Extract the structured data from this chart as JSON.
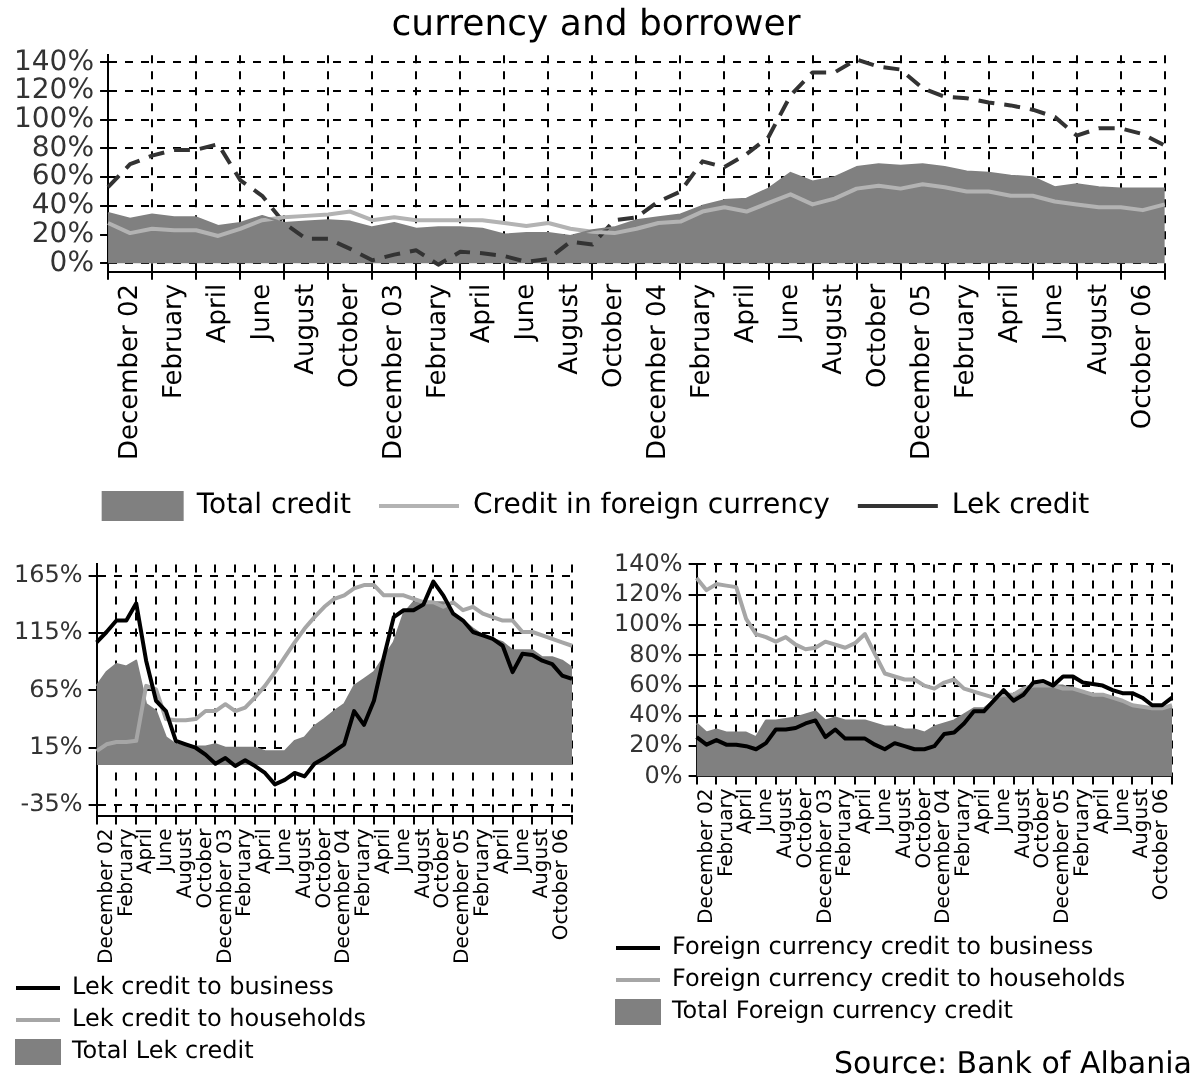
{
  "chart_data": [
    {
      "type": "line",
      "title": "currency and borrower",
      "categories": [
        null,
        "December 02",
        null,
        "February",
        null,
        "April",
        null,
        "June",
        null,
        "August",
        null,
        "October",
        null,
        "December 03",
        null,
        "February",
        null,
        "April",
        null,
        "June",
        null,
        "August",
        null,
        "October",
        null,
        "December 04",
        null,
        "February",
        null,
        "April",
        null,
        "June",
        null,
        "August",
        null,
        "October",
        null,
        "December 05",
        null,
        "February",
        null,
        "April",
        null,
        "June",
        null,
        "August",
        null,
        "October 06",
        null
      ],
      "series": [
        {
          "name": "Total credit",
          "type": "area",
          "color": "#808080",
          "values": [
            35,
            31,
            34,
            32,
            32,
            26,
            28,
            33,
            28,
            29,
            30,
            29,
            25,
            28,
            24,
            25,
            25,
            24,
            20,
            21,
            21,
            19,
            23,
            25,
            30,
            32,
            34,
            40,
            44,
            45,
            52,
            63,
            57,
            60,
            67,
            69,
            68,
            69,
            67,
            64,
            63,
            61,
            60,
            53,
            55,
            53,
            52,
            52,
            52
          ]
        },
        {
          "name": "Credit in foreign currency",
          "color": "#b3b3b3",
          "values": [
            28,
            21,
            24,
            23,
            23,
            19,
            24,
            30,
            32,
            33,
            34,
            36,
            30,
            32,
            30,
            30,
            30,
            30,
            28,
            26,
            28,
            24,
            22,
            21,
            24,
            28,
            29,
            36,
            39,
            36,
            42,
            48,
            41,
            45,
            52,
            54,
            52,
            55,
            53,
            50,
            50,
            47,
            47,
            43,
            41,
            39,
            39,
            37,
            41
          ]
        },
        {
          "name": "Lek credit",
          "color": "#333333",
          "line_style": "dashed",
          "values": [
            53,
            69,
            75,
            79,
            79,
            83,
            58,
            47,
            28,
            17,
            17,
            10,
            2,
            6,
            9,
            -1,
            8,
            7,
            5,
            1,
            3,
            15,
            13,
            30,
            32,
            43,
            50,
            71,
            67,
            76,
            88,
            117,
            133,
            133,
            142,
            137,
            135,
            122,
            116,
            115,
            112,
            110,
            107,
            102,
            89,
            94,
            94,
            90,
            82
          ]
        }
      ],
      "ylim": [
        -6,
        145
      ],
      "yticks": [
        {
          "value": 0,
          "label": "0%"
        },
        {
          "value": 20,
          "label": "20%"
        },
        {
          "value": 40,
          "label": "40%"
        },
        {
          "value": 60,
          "label": "60%"
        },
        {
          "value": 80,
          "label": "80%"
        },
        {
          "value": 100,
          "label": "100%"
        },
        {
          "value": 120,
          "label": "120%"
        },
        {
          "value": 140,
          "label": "140%"
        }
      ],
      "grid": true,
      "legend": "bottom"
    },
    {
      "type": "line",
      "categories": [
        null,
        "December 02",
        null,
        "February",
        null,
        "April",
        null,
        "June",
        null,
        "August",
        null,
        "October",
        null,
        "December 03",
        null,
        "February",
        null,
        "April",
        null,
        "June",
        null,
        "August",
        null,
        "October",
        null,
        "December 04",
        null,
        "February",
        null,
        "April",
        null,
        "June",
        null,
        "August",
        null,
        "October",
        null,
        "December 05",
        null,
        "February",
        null,
        "April",
        null,
        "June",
        null,
        "August",
        null,
        "October 06",
        null
      ],
      "series": [
        {
          "name": "Lek credit to business",
          "color": "#000000",
          "values": [
            107,
            116,
            126,
            126,
            141,
            91,
            56,
            47,
            21,
            18,
            15,
            9,
            1,
            6,
            -1,
            4,
            -1,
            -7,
            -17,
            -13,
            -7,
            -10,
            1,
            6,
            12,
            18,
            47,
            35,
            56,
            94,
            129,
            135,
            135,
            140,
            160,
            148,
            132,
            126,
            116,
            113,
            110,
            104,
            81,
            97,
            96,
            91,
            88,
            78,
            75
          ]
        },
        {
          "name": "Lek credit to households",
          "color": "#a6a6a6",
          "values": [
            12,
            18,
            20,
            20,
            21,
            69,
            66,
            40,
            39,
            39,
            40,
            47,
            47,
            53,
            47,
            50,
            59,
            69,
            81,
            94,
            107,
            119,
            129,
            138,
            145,
            148,
            154,
            157,
            157,
            148,
            148,
            148,
            145,
            142,
            142,
            138,
            142,
            135,
            138,
            132,
            129,
            126,
            126,
            116,
            116,
            113,
            110,
            107,
            104
          ]
        },
        {
          "name": "Total Lek credit",
          "type": "area",
          "color": "#808080",
          "values": [
            69,
            81,
            88,
            86,
            91,
            53,
            47,
            24,
            18,
            16,
            16,
            16,
            18,
            15,
            15,
            15,
            15,
            12,
            12,
            12,
            21,
            24,
            34,
            40,
            47,
            53,
            69,
            75,
            81,
            94,
            107,
            132,
            142,
            142,
            142,
            142,
            132,
            126,
            119,
            113,
            110,
            107,
            100,
            100,
            100,
            94,
            94,
            91,
            85
          ]
        }
      ],
      "ylim": [
        -45,
        175
      ],
      "yticks": [
        {
          "value": -35,
          "label": "-35%"
        },
        {
          "value": 15,
          "label": "15%"
        },
        {
          "value": 65,
          "label": "65%"
        },
        {
          "value": 115,
          "label": "115%"
        },
        {
          "value": 165,
          "label": "165%"
        }
      ],
      "grid": true,
      "legend": "bottom"
    },
    {
      "type": "line",
      "categories": [
        null,
        "December 02",
        null,
        "February",
        null,
        "April",
        null,
        "June",
        null,
        "August",
        null,
        "October",
        null,
        "December 03",
        null,
        "February",
        null,
        "April",
        null,
        "June",
        null,
        "August",
        null,
        "October",
        null,
        "December 04",
        null,
        "February",
        null,
        "April",
        null,
        "June",
        null,
        "August",
        null,
        "October",
        null,
        "December 05",
        null,
        "February",
        null,
        "April",
        null,
        "June",
        null,
        "August",
        null,
        "October 06",
        null
      ],
      "series": [
        {
          "name": "Foreign currency credit to business",
          "color": "#000000",
          "values": [
            26,
            21,
            24,
            21,
            21,
            20,
            18,
            22,
            31,
            31,
            32,
            35,
            37,
            26,
            31,
            25,
            25,
            25,
            21,
            18,
            22,
            20,
            18,
            18,
            20,
            28,
            29,
            35,
            43,
            43,
            50,
            57,
            50,
            54,
            62,
            63,
            60,
            66,
            66,
            62,
            61,
            60,
            57,
            55,
            55,
            52,
            47,
            47,
            52
          ]
        },
        {
          "name": "Foreign currency credit to households",
          "color": "#a6a6a6",
          "values": [
            131,
            123,
            127,
            126,
            125,
            104,
            94,
            92,
            89,
            92,
            87,
            84,
            85,
            89,
            87,
            85,
            88,
            94,
            81,
            68,
            66,
            64,
            64,
            60,
            58,
            62,
            64,
            58,
            56,
            54,
            52,
            54,
            54,
            58,
            60,
            60,
            60,
            58,
            58,
            56,
            54,
            54,
            52,
            50,
            47,
            46,
            45,
            45,
            47
          ]
        },
        {
          "name": "Total Foreign currency credit",
          "type": "area",
          "color": "#808080",
          "values": [
            35,
            29,
            31,
            29,
            29,
            29,
            26,
            37,
            37,
            38,
            39,
            41,
            43,
            37,
            39,
            37,
            37,
            37,
            35,
            33,
            33,
            31,
            31,
            29,
            33,
            35,
            37,
            41,
            45,
            45,
            50,
            54,
            54,
            56,
            60,
            60,
            60,
            60,
            58,
            56,
            54,
            54,
            52,
            49,
            46,
            45,
            45,
            45,
            46
          ]
        }
      ],
      "ylim": [
        0,
        140
      ],
      "yticks": [
        {
          "value": 0,
          "label": "0%"
        },
        {
          "value": 20,
          "label": "20%"
        },
        {
          "value": 40,
          "label": "40%"
        },
        {
          "value": 60,
          "label": "60%"
        },
        {
          "value": 80,
          "label": "80%"
        },
        {
          "value": 100,
          "label": "100%"
        },
        {
          "value": 120,
          "label": "120%"
        },
        {
          "value": 140,
          "label": "140%"
        }
      ],
      "grid": true,
      "legend": "bottom",
      "annotations": [
        "Source: Bank of Albania"
      ]
    }
  ]
}
